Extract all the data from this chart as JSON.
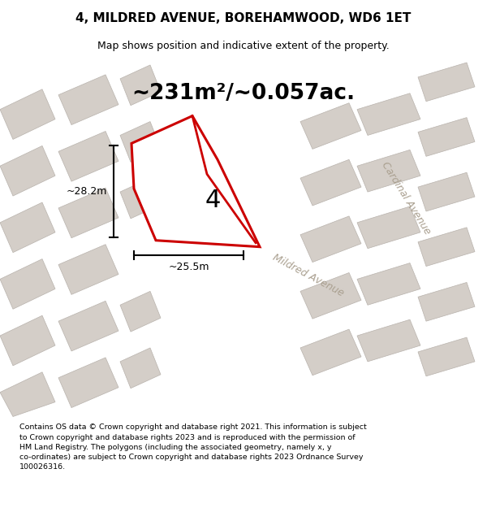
{
  "title": "4, MILDRED AVENUE, BOREHAMWOOD, WD6 1ET",
  "subtitle": "Map shows position and indicative extent of the property.",
  "footer_text": "Contains OS data © Crown copyright and database right 2021. This information is subject\nto Crown copyright and database rights 2023 and is reproduced with the permission of\nHM Land Registry. The polygons (including the associated geometry, namely x, y\nco-ordinates) are subject to Crown copyright and database rights 2023 Ordnance Survey\n100026316.",
  "area_label": "~231m²/~0.057ac.",
  "plot_number": "4",
  "dim_width": "~25.5m",
  "dim_height": "~28.2m",
  "bg_color": "#eeebe5",
  "building_fill": "#d4cec8",
  "building_edge": "#b8b2ac",
  "highlight_color": "#cc0000",
  "road_label1": "Cardinal Avenue",
  "road_label2": "Mildred Avenue",
  "road_label_color": "#aaa090",
  "title_fontsize": 11,
  "subtitle_fontsize": 9,
  "footer_fontsize": 6.8,
  "area_fontsize": 19,
  "plot_num_fontsize": 22,
  "dim_fontsize": 9
}
